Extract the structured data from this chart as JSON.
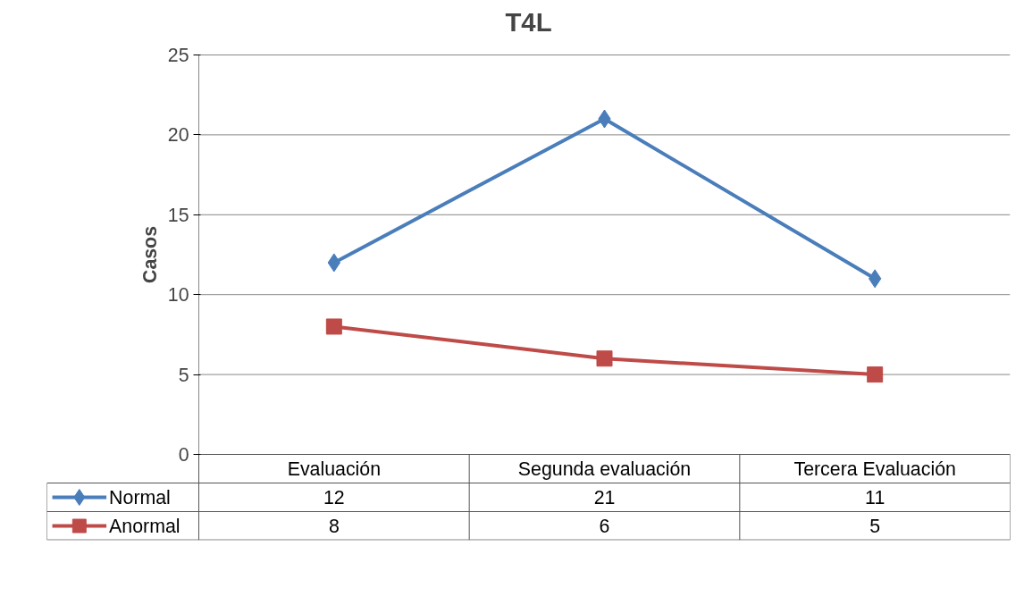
{
  "chart_data": {
    "type": "line",
    "title": "T4L",
    "ylabel": "Casos",
    "categories": [
      "Evaluación",
      "Segunda evaluación",
      "Tercera Evaluación"
    ],
    "series": [
      {
        "name": "Normal",
        "color": "#4a7ebb",
        "marker": "diamond",
        "values": [
          12,
          21,
          11
        ]
      },
      {
        "name": "Anormal",
        "color": "#be4b48",
        "marker": "square",
        "values": [
          8,
          6,
          5
        ]
      }
    ],
    "ylim": [
      0,
      25
    ],
    "yticks": [
      0,
      5,
      10,
      15,
      20,
      25
    ],
    "grid": "y",
    "legend": "bottom",
    "data_labels": true,
    "line_style": "solid"
  }
}
